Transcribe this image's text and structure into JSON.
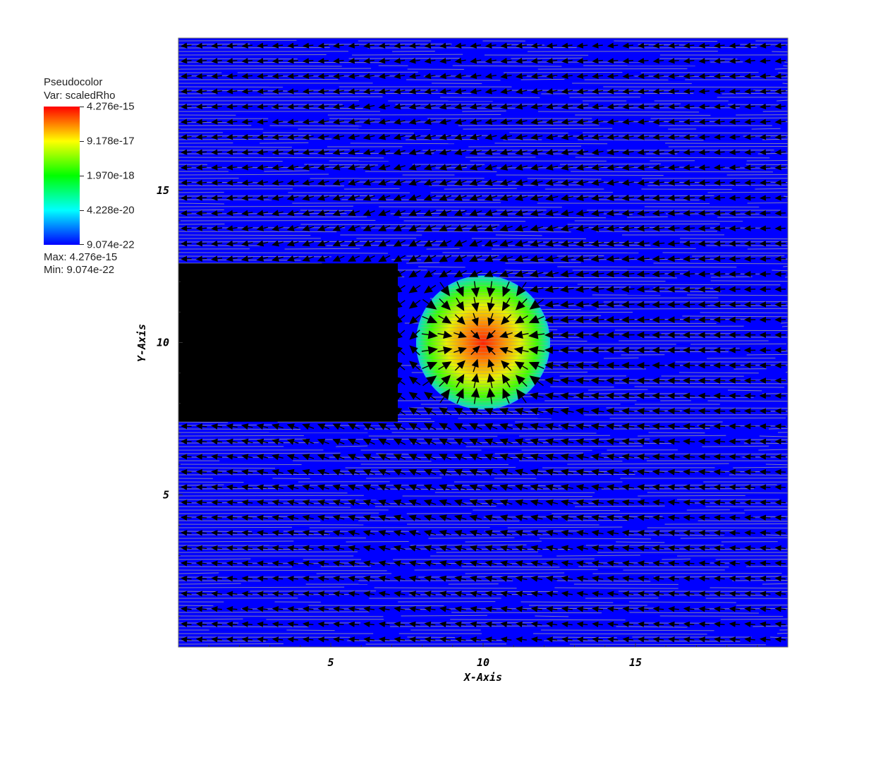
{
  "legend": {
    "title": "Pseudocolor",
    "var": "Var: scaledRho",
    "ticks": [
      "4.276e-15",
      "9.178e-17",
      "1.970e-18",
      "4.228e-20",
      "9.074e-22"
    ],
    "max": "Max:  4.276e-15",
    "min": "Min:  9.074e-22",
    "colors": [
      "#ff0000",
      "#ffff00",
      "#00ff00",
      "#00ffff",
      "#0000ff"
    ]
  },
  "chart_data": {
    "type": "heatmap",
    "plot_kind": "pseudocolor density with velocity vector field",
    "xlabel": "X-Axis",
    "ylabel": "Y-Axis",
    "xlim": [
      0,
      20
    ],
    "ylim": [
      0,
      20
    ],
    "xticks": [
      5,
      10,
      15
    ],
    "yticks": [
      5,
      10,
      15
    ],
    "variable": "scaledRho",
    "colorscale": "log",
    "value_range": [
      9.074e-22,
      4.276e-15
    ],
    "background_value": 9.074e-22,
    "blob": {
      "center": [
        10,
        10
      ],
      "radius": 2.2
    },
    "vector_field_color": "#000000",
    "background_color": "#0000ff",
    "streak_color": "#9e9e9e"
  }
}
